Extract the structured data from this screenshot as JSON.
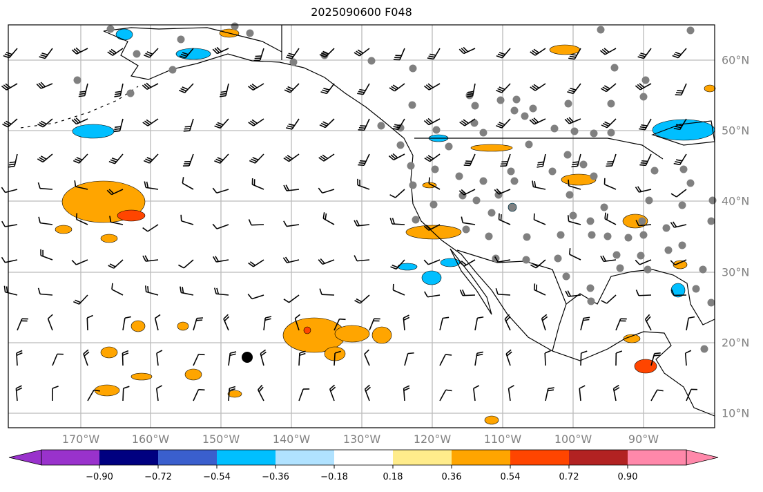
{
  "title": "2025090600 F048",
  "lon_labels": [
    "170°W",
    "160°W",
    "150°W",
    "140°W",
    "130°W",
    "120°W",
    "110°W",
    "100°W",
    "90°W"
  ],
  "lat_labels": [
    "60°N",
    "50°N",
    "40°N",
    "30°N",
    "20°N",
    "10°N"
  ],
  "colorbar": {
    "ticks": [
      "−0.90",
      "−0.72",
      "−0.54",
      "−0.36",
      "−0.18",
      "0.18",
      "0.36",
      "0.54",
      "0.72",
      "0.90"
    ],
    "colors": [
      "#9932CC",
      "#000080",
      "#3A5FCD",
      "#00BFFF",
      "#B0E2FF",
      "#FFFFFF",
      "#FFEC8B",
      "#FFA500",
      "#FF4500",
      "#B22222",
      "#FF88AA"
    ]
  }
}
